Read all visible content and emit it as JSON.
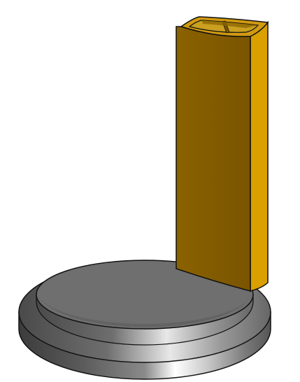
{
  "scene": {
    "objects": [
      {
        "name": "base-disc",
        "color": "#6f6f6f"
      },
      {
        "name": "upright-post",
        "color": "#d49a00"
      }
    ],
    "colors": {
      "disc_top": "#707070",
      "disc_top_edge": "#8a8a8a",
      "disc_side_dark": "#4a4a4a",
      "disc_side_light": "#f2f2f2",
      "post_front": "#8a6000",
      "post_side": "#d9a000",
      "post_top": "#d19a10",
      "outline": "#111111"
    }
  }
}
